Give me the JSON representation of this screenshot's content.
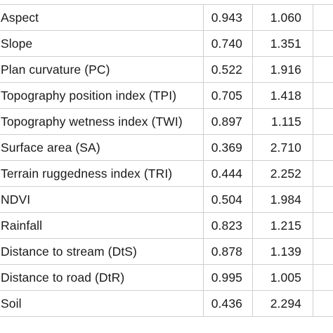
{
  "table": {
    "rows": [
      {
        "name": "Aspect",
        "v1": "0.943",
        "v2": "1.060"
      },
      {
        "name": "Slope",
        "v1": "0.740",
        "v2": "1.351"
      },
      {
        "name": "Plan curvature (PC)",
        "v1": "0.522",
        "v2": "1.916"
      },
      {
        "name": "Topography position index (TPI)",
        "v1": "0.705",
        "v2": "1.418"
      },
      {
        "name": "Topography wetness index (TWI)",
        "v1": "0.897",
        "v2": "1.115"
      },
      {
        "name": "Surface area (SA)",
        "v1": "0.369",
        "v2": "2.710"
      },
      {
        "name": "Terrain ruggedness index (TRI)",
        "v1": "0.444",
        "v2": "2.252"
      },
      {
        "name": "NDVI",
        "v1": "0.504",
        "v2": "1.984"
      },
      {
        "name": "Rainfall",
        "v1": "0.823",
        "v2": "1.215"
      },
      {
        "name": "Distance to stream (DtS)",
        "v1": "0.878",
        "v2": "1.139"
      },
      {
        "name": "Distance to road (DtR)",
        "v1": "0.995",
        "v2": "1.005"
      },
      {
        "name": "Soil",
        "v1": "0.436",
        "v2": "2.294"
      }
    ]
  }
}
